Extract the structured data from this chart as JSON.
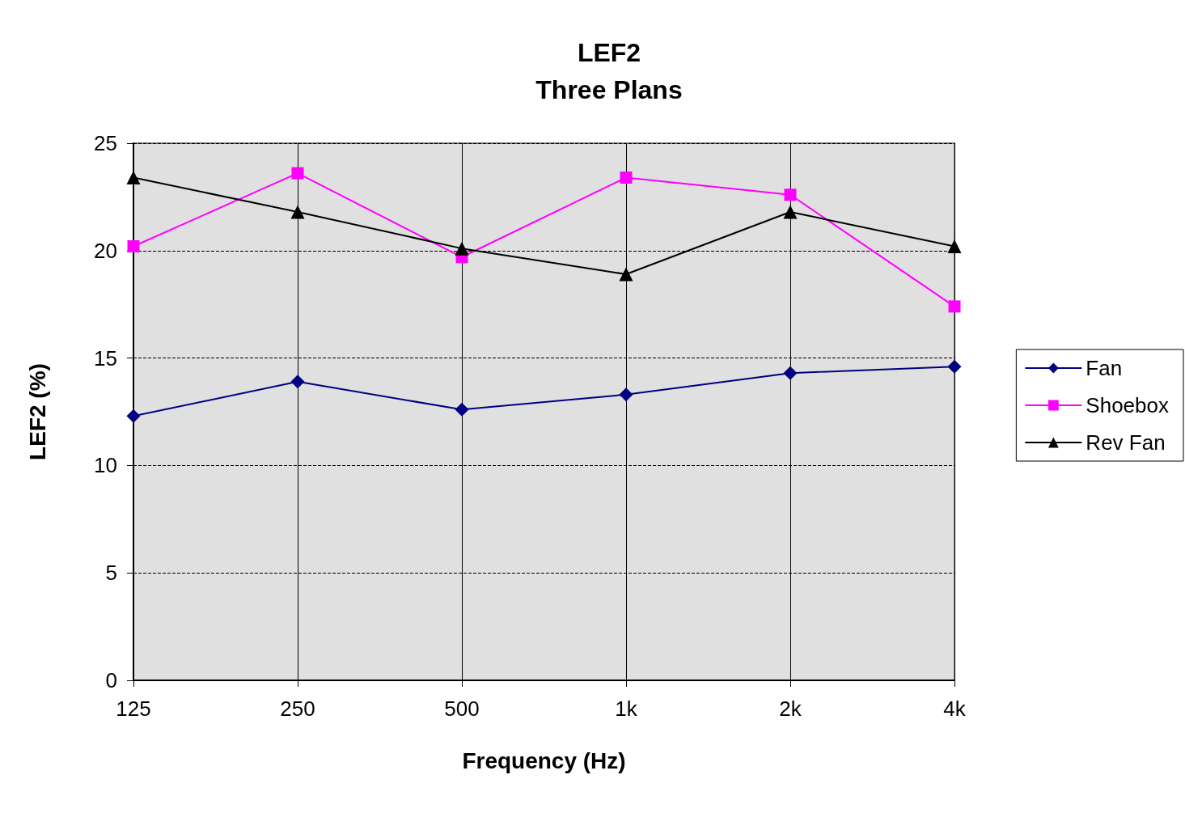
{
  "chart_data": {
    "type": "line",
    "title": "LEF2",
    "subtitle": "Three Plans",
    "xlabel": "Frequency (Hz)",
    "ylabel": "LEF2 (%)",
    "categories": [
      "125",
      "250",
      "500",
      "1k",
      "2k",
      "4k"
    ],
    "series": [
      {
        "name": "Fan",
        "color": "#000080",
        "marker": "diamond",
        "values": [
          12.3,
          13.9,
          12.6,
          13.3,
          14.3,
          14.6
        ]
      },
      {
        "name": "Shoebox",
        "color": "#ff00ff",
        "marker": "square",
        "values": [
          20.2,
          23.6,
          19.7,
          23.4,
          22.6,
          17.4
        ]
      },
      {
        "name": "Rev Fan",
        "color": "#000000",
        "marker": "triangle",
        "values": [
          23.4,
          21.8,
          20.1,
          18.9,
          21.8,
          20.2
        ]
      }
    ],
    "ylim": [
      0,
      25
    ],
    "yticks": [
      0,
      5,
      10,
      15,
      20,
      25
    ],
    "grid": true,
    "legend": "right",
    "line_style": "solid"
  }
}
